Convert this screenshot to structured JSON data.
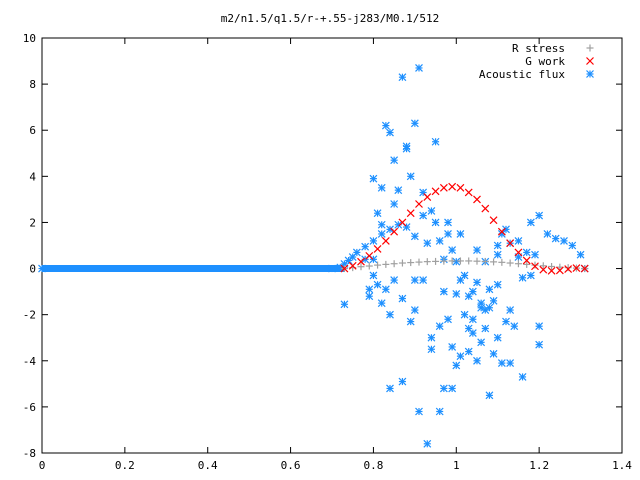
{
  "chart_data": {
    "type": "scatter",
    "title": "m2/n1.5/q1.5/r-+.55-j283/M0.1/512",
    "xlabel": "",
    "ylabel": "",
    "xlim": [
      0,
      1.4
    ],
    "ylim": [
      -8,
      10
    ],
    "x_ticks": [
      "0",
      "0.2",
      "0.4",
      "0.6",
      "0.8",
      "1",
      "1.2",
      "1.4"
    ],
    "y_ticks": [
      "-8",
      "-6",
      "-4",
      "-2",
      "0",
      "2",
      "4",
      "6",
      "8",
      "10"
    ],
    "grid": false,
    "legend_position": "top-right",
    "series": [
      {
        "name": "R stress",
        "marker": "plus",
        "color": "#a0a0a0",
        "x": [
          0.73,
          0.75,
          0.77,
          0.79,
          0.81,
          0.83,
          0.85,
          0.87,
          0.89,
          0.91,
          0.93,
          0.95,
          0.97,
          0.99,
          1.01,
          1.03,
          1.05,
          1.07,
          1.09,
          1.11,
          1.13,
          1.15,
          1.17,
          1.19,
          1.21,
          1.23,
          1.25,
          1.27,
          1.29,
          1.31
        ],
        "y": [
          0.0,
          0.04,
          0.08,
          0.11,
          0.15,
          0.18,
          0.21,
          0.24,
          0.26,
          0.28,
          0.3,
          0.31,
          0.32,
          0.33,
          0.33,
          0.33,
          0.32,
          0.31,
          0.29,
          0.27,
          0.24,
          0.21,
          0.18,
          0.15,
          0.12,
          0.09,
          0.06,
          0.04,
          0.02,
          0.0
        ]
      },
      {
        "name": "G work",
        "marker": "cross",
        "color": "#ff0000",
        "x": [
          0.73,
          0.75,
          0.77,
          0.79,
          0.81,
          0.83,
          0.85,
          0.87,
          0.89,
          0.91,
          0.93,
          0.95,
          0.97,
          0.99,
          1.01,
          1.03,
          1.05,
          1.07,
          1.09,
          1.11,
          1.13,
          1.15,
          1.17,
          1.19,
          1.21,
          1.23,
          1.25,
          1.27,
          1.29,
          1.31
        ],
        "y": [
          0.0,
          0.12,
          0.3,
          0.55,
          0.85,
          1.2,
          1.6,
          2.0,
          2.4,
          2.8,
          3.1,
          3.35,
          3.5,
          3.55,
          3.5,
          3.3,
          3.0,
          2.6,
          2.1,
          1.6,
          1.1,
          0.7,
          0.35,
          0.1,
          -0.05,
          -0.1,
          -0.08,
          -0.02,
          0.02,
          0.0
        ]
      },
      {
        "name": "Acoustic flux",
        "marker": "star",
        "color": "#1e90ff",
        "x": [
          0.0,
          0.7,
          0.72,
          0.73,
          0.74,
          0.75,
          0.76,
          0.78,
          0.8,
          0.82,
          0.84,
          0.86,
          0.88,
          0.9,
          1.05,
          1.1,
          1.15,
          1.18,
          1.2,
          1.22,
          1.24,
          1.26,
          1.28,
          1.3,
          1.31,
          0.73,
          0.78,
          0.8,
          0.81,
          0.82,
          0.83,
          0.84,
          0.85,
          0.86,
          0.87,
          0.88,
          0.89,
          0.9,
          0.91,
          0.92,
          0.93,
          0.94,
          0.95,
          0.96,
          0.97,
          0.98,
          0.99,
          1.0,
          1.01,
          1.02,
          1.03,
          1.04,
          1.05,
          1.06,
          1.07,
          1.08,
          1.09,
          1.1,
          1.11,
          1.12,
          1.13,
          1.15,
          1.17,
          1.19,
          0.79,
          0.8,
          0.81,
          0.82,
          0.83,
          0.84,
          0.85,
          0.87,
          0.89,
          0.9,
          0.92,
          0.94,
          0.96,
          0.97,
          0.98,
          0.99,
          1.0,
          1.01,
          1.02,
          1.03,
          1.04,
          1.05,
          1.06,
          1.07,
          1.08,
          1.09,
          1.1,
          1.11,
          1.12,
          1.13,
          1.14,
          1.16,
          1.18,
          1.2,
          0.93,
          0.91,
          0.87,
          0.84,
          0.79,
          0.8,
          0.82,
          0.85,
          0.88,
          0.92,
          0.95,
          0.98,
          1.01,
          1.04,
          1.07,
          1.1,
          1.13,
          1.16,
          1.2,
          0.9,
          0.97,
          1.0,
          1.06,
          1.08,
          0.94,
          0.96,
          0.99,
          1.03
        ],
        "y": [
          0.0,
          0.0,
          0.05,
          0.2,
          0.35,
          0.5,
          0.7,
          0.95,
          1.2,
          1.5,
          1.7,
          1.9,
          1.8,
          1.4,
          0.8,
          0.6,
          1.2,
          2.0,
          2.3,
          1.5,
          1.3,
          1.2,
          1.0,
          0.6,
          0.0,
          -1.55,
          0.4,
          3.9,
          2.4,
          1.9,
          6.2,
          5.9,
          4.7,
          3.4,
          8.3,
          5.2,
          4.0,
          6.3,
          8.7,
          2.3,
          1.1,
          2.5,
          2.0,
          1.2,
          0.4,
          1.5,
          0.8,
          0.3,
          -0.5,
          -0.3,
          -1.2,
          -2.2,
          -0.6,
          -1.5,
          0.3,
          -0.9,
          -1.4,
          1.0,
          1.5,
          1.7,
          1.1,
          0.5,
          0.7,
          0.6,
          -1.2,
          -0.3,
          -0.7,
          -1.5,
          -0.9,
          -2.0,
          -0.5,
          -1.3,
          -2.3,
          -1.8,
          -0.5,
          -3.0,
          -2.5,
          -1.0,
          -2.2,
          -3.4,
          -4.2,
          -3.8,
          -2.0,
          -3.6,
          -2.8,
          -4.0,
          -3.2,
          -2.6,
          -1.7,
          -3.7,
          -3.0,
          -4.1,
          -2.3,
          -1.8,
          -2.5,
          -4.7,
          -0.3,
          -3.3,
          -7.6,
          -6.2,
          -4.9,
          -5.2,
          -0.9,
          0.4,
          3.5,
          2.8,
          5.3,
          3.3,
          5.5,
          2.0,
          1.5,
          -1.0,
          -1.8,
          -0.7,
          -4.1,
          -0.4,
          -2.5,
          -0.5,
          -5.2,
          -1.1,
          -1.7,
          -5.5,
          -3.5,
          -6.2,
          -5.2,
          -2.6
        ]
      }
    ]
  }
}
